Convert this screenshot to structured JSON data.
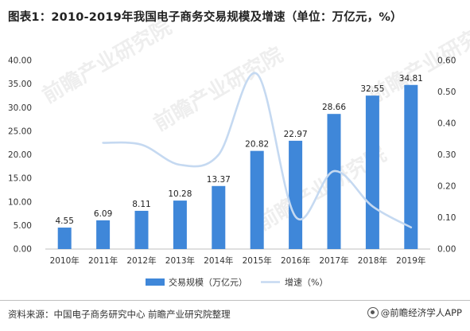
{
  "title": "图表1：2010-2019年我国电子商务交易规模及增速（单位：万亿元，%）",
  "source": "资料来源：中国电子商务研究中心 前瞻产业研究院整理",
  "brand": "@前瞻经济学人APP",
  "chart_data": {
    "type": "bar",
    "categories": [
      "2010年",
      "2011年",
      "2012年",
      "2013年",
      "2014年",
      "2015年",
      "2016年",
      "2017年",
      "2018年",
      "2019年"
    ],
    "series": [
      {
        "name": "交易规模（万亿元）",
        "type": "bar",
        "axis": "left",
        "color": "#3f87d9",
        "values": [
          4.55,
          6.09,
          8.11,
          10.28,
          13.37,
          20.82,
          22.97,
          28.66,
          32.55,
          34.81
        ],
        "labels": [
          "4.55",
          "6.09",
          "8.11",
          "10.28",
          "13.37",
          "20.82",
          "22.97",
          "28.66",
          "32.55",
          "34.81"
        ]
      },
      {
        "name": "增速（%）",
        "type": "line",
        "smooth": true,
        "axis": "right",
        "color": "#c5d9f1",
        "values": [
          null,
          0.338,
          0.332,
          0.268,
          0.3,
          0.557,
          0.103,
          0.248,
          0.136,
          0.069
        ]
      }
    ],
    "y_left": {
      "min": 0,
      "max": 40,
      "step": 5,
      "ticks": [
        "0.00",
        "5.00",
        "10.00",
        "15.00",
        "20.00",
        "25.00",
        "30.00",
        "35.00",
        "40.00"
      ]
    },
    "y_right": {
      "min": 0,
      "max": 0.6,
      "step": 0.1,
      "ticks": [
        "0.00",
        "0.10",
        "0.20",
        "0.30",
        "0.40",
        "0.50",
        "0.60"
      ]
    },
    "grid": false,
    "legend": "bottom-center"
  }
}
